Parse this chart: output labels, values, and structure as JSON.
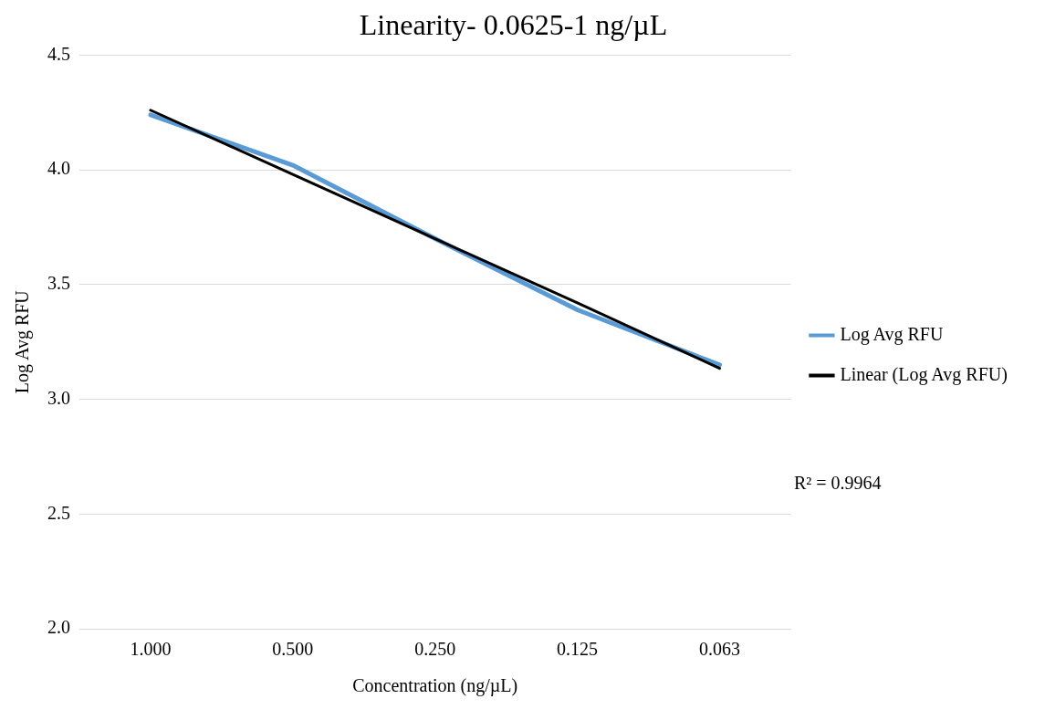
{
  "chart_data": {
    "type": "line",
    "title": "Linearity- 0.0625-1 ng/µL",
    "xlabel": "Concentration (ng/µL)",
    "ylabel": "Log Avg RFU",
    "categories": [
      "1.000",
      "0.500",
      "0.250",
      "0.125",
      "0.063"
    ],
    "series": [
      {
        "name": "Log Avg RFU",
        "color": "#5b9bd5",
        "values": [
          4.24,
          4.02,
          3.7,
          3.39,
          3.15
        ]
      },
      {
        "name": "Linear (Log Avg RFU)",
        "color": "#000000",
        "values": [
          4.26,
          3.98,
          3.7,
          3.42,
          3.135
        ]
      }
    ],
    "ylim": [
      2,
      4.5
    ],
    "yticks": [
      {
        "value": 2,
        "label": "2.0"
      },
      2.5,
      {
        "value": 3,
        "label": "3.0"
      },
      3.5,
      {
        "value": 4,
        "label": "4.0"
      },
      4.5
    ],
    "grid": "y",
    "legend": "right",
    "marker": "none",
    "line_style": "solid",
    "annotations": [
      "R² = 0.9964"
    ]
  }
}
